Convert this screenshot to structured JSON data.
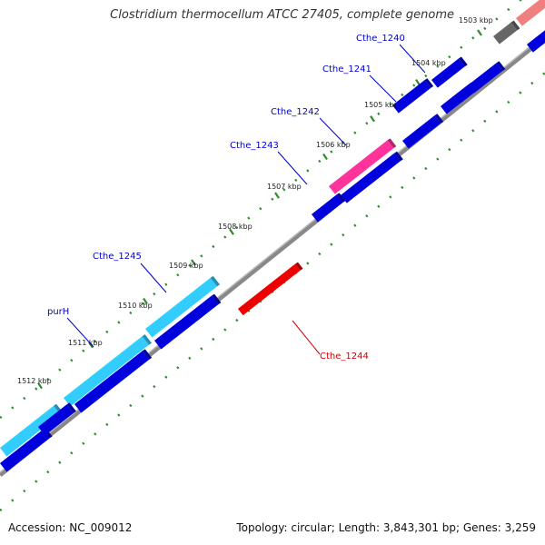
{
  "header": {
    "title": "Clostridium thermocellum ATCC 27405, complete genome"
  },
  "footer": {
    "accession": "Accession: NC_009012",
    "summary": "Topology: circular; Length: 3,843,301 bp; Genes: 3,259"
  },
  "colors": {
    "cds_forward": "#0000dd",
    "cds_reverse": "#0000dd",
    "highlight_cyan": "#33ccff",
    "highlight_pink": "#ff3399",
    "highlight_red": "#ee0000",
    "highlight_salmon": "#f08080",
    "gray_feature": "#666666",
    "backbone": "#777777",
    "tick": "#2e8b2e",
    "label_blue": "#0000cc",
    "label_red": "#cc0000"
  },
  "scale": {
    "ticks": [
      {
        "label": "1503 kbp"
      },
      {
        "label": "1504 kbp"
      },
      {
        "label": "1505 kbp"
      },
      {
        "label": "1506 kbp"
      },
      {
        "label": "1507 kbp"
      },
      {
        "label": "1508 kbp"
      },
      {
        "label": "1509 kbp"
      },
      {
        "label": "1510 kbp"
      },
      {
        "label": "1511 kbp"
      },
      {
        "label": "1512 kbp"
      }
    ]
  },
  "genes": {
    "labels": [
      {
        "name": "Cthe_1240",
        "color_key": "label_blue"
      },
      {
        "name": "Cthe_1241",
        "color_key": "label_blue"
      },
      {
        "name": "Cthe_1242",
        "color_key": "label_blue"
      },
      {
        "name": "Cthe_1243",
        "color_key": "label_blue"
      },
      {
        "name": "Cthe_1245",
        "color_key": "label_blue"
      },
      {
        "name": "purH",
        "color_key": "label_blue"
      },
      {
        "name": "Cthe_1244",
        "color_key": "label_red"
      }
    ]
  }
}
